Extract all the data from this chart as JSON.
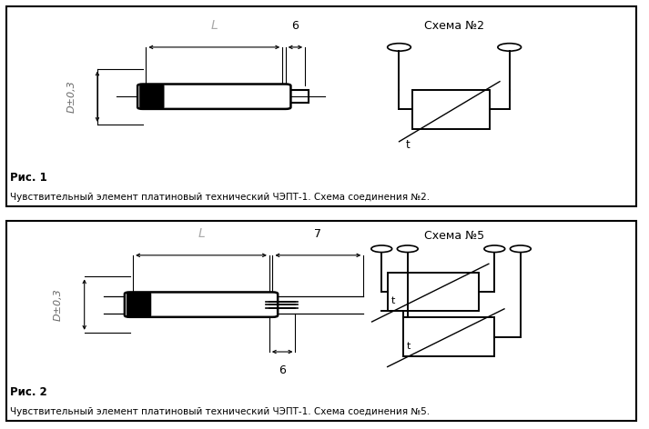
{
  "bg_color": "#ffffff",
  "border_color": "#000000",
  "fig1": {
    "caption_title": "Рис. 1",
    "caption_body": "Чувствительный элемент платиновый технический ЧЭПТ-1. Схема соединения №2.",
    "schema_label": "Схема №2",
    "dim_D": "D±0,3",
    "dim_L": "L",
    "dim_6": "6"
  },
  "fig2": {
    "caption_title": "Рис. 2",
    "caption_body": "Чувствительный элемент платиновый технический ЧЭПТ-1. Схема соединения №5.",
    "schema_label": "Схема №5",
    "dim_D": "D±0,3",
    "dim_L": "L",
    "dim_7": "7",
    "dim_6": "6"
  }
}
